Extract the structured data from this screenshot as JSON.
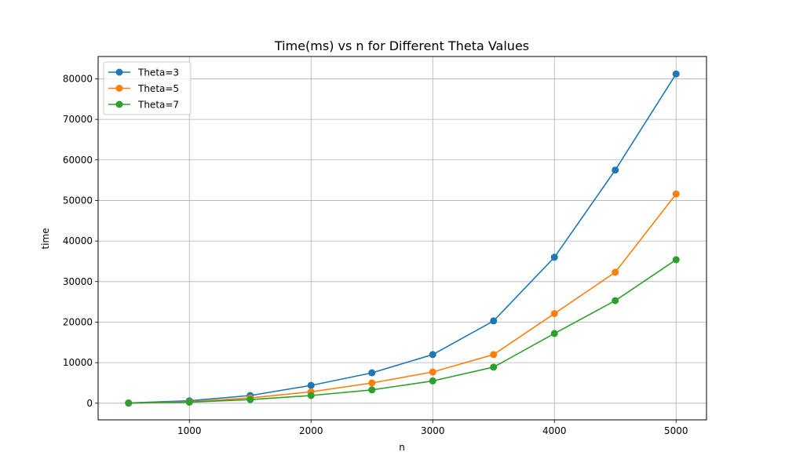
{
  "chart_data": {
    "type": "line",
    "title": "Time(ms) vs n for Different Theta Values",
    "xlabel": "n",
    "ylabel": "time",
    "x": [
      500,
      1000,
      1500,
      2000,
      2500,
      3000,
      3500,
      4000,
      4500,
      5000
    ],
    "xlim": [
      250,
      5250
    ],
    "ylim": [
      -4100,
      85500
    ],
    "xticks": [
      1000,
      2000,
      3000,
      4000,
      5000
    ],
    "yticks": [
      0,
      10000,
      20000,
      30000,
      40000,
      50000,
      60000,
      70000,
      80000
    ],
    "grid": true,
    "legend_position": "upper-left",
    "series": [
      {
        "name": "Theta=3",
        "color": "#1f77b4",
        "values": [
          80,
          600,
          1900,
          4400,
          7500,
          12000,
          20300,
          36000,
          57500,
          81200
        ]
      },
      {
        "name": "Theta=5",
        "color": "#ff7f0e",
        "values": [
          50,
          350,
          1300,
          2800,
          5000,
          7700,
          12000,
          22100,
          32300,
          51600
        ]
      },
      {
        "name": "Theta=7",
        "color": "#2ca02c",
        "values": [
          30,
          250,
          900,
          1900,
          3300,
          5500,
          8900,
          17200,
          25300,
          35400
        ]
      }
    ]
  }
}
